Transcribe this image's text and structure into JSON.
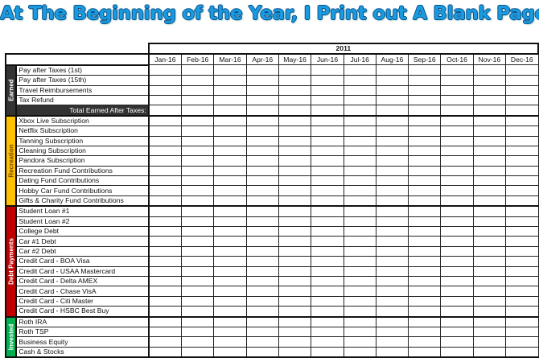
{
  "title": "At The Beginning of the Year, I Print out A Blank Page.",
  "year": "2011",
  "months": [
    "Jan-16",
    "Feb-16",
    "Mar-16",
    "Apr-16",
    "May-16",
    "Jun-16",
    "Jul-16",
    "Aug-16",
    "Sep-16",
    "Oct-16",
    "Nov-16",
    "Dec-16"
  ],
  "groups": [
    {
      "name": "Earned",
      "color": "#333333",
      "items": [
        "Pay after Taxes (1st)",
        "Pay after Taxes (15th)",
        "Travel Reimbursements",
        "Tax Refund"
      ],
      "total": "Total Earned After Taxes:"
    },
    {
      "name": "Recreation",
      "color": "#ffc000",
      "text_color": "#7a4a00",
      "items": [
        "Xbox Live Subscription",
        "Netflix Subscription",
        "Tanning Subscription",
        "Cleaning Subscription",
        "Pandora Subscription",
        "Recreation Fund Contributions",
        "Dating Fund Contributions",
        "Hobby Car Fund Contributions",
        "Gifts & Charity Fund Contributions"
      ]
    },
    {
      "name": "Debt Payments",
      "color": "#c00000",
      "items": [
        "Student Loan #1",
        "Student Loan #2",
        "College Debt",
        "Car #1 Debt",
        "Car #2 Debt",
        "Credit Card - BOA Visa",
        "Credit Card - USAA Mastercard",
        "Credit Card - Delta AMEX",
        "Credit Card - Chase VisA",
        "Credit Card - Citi Master",
        "Credit Card - HSBC Best Buy"
      ]
    },
    {
      "name": "Invested",
      "color": "#00b050",
      "items": [
        "Roth IRA",
        "Roth TSP",
        "Business Equity",
        "Cash & Stocks"
      ]
    }
  ]
}
